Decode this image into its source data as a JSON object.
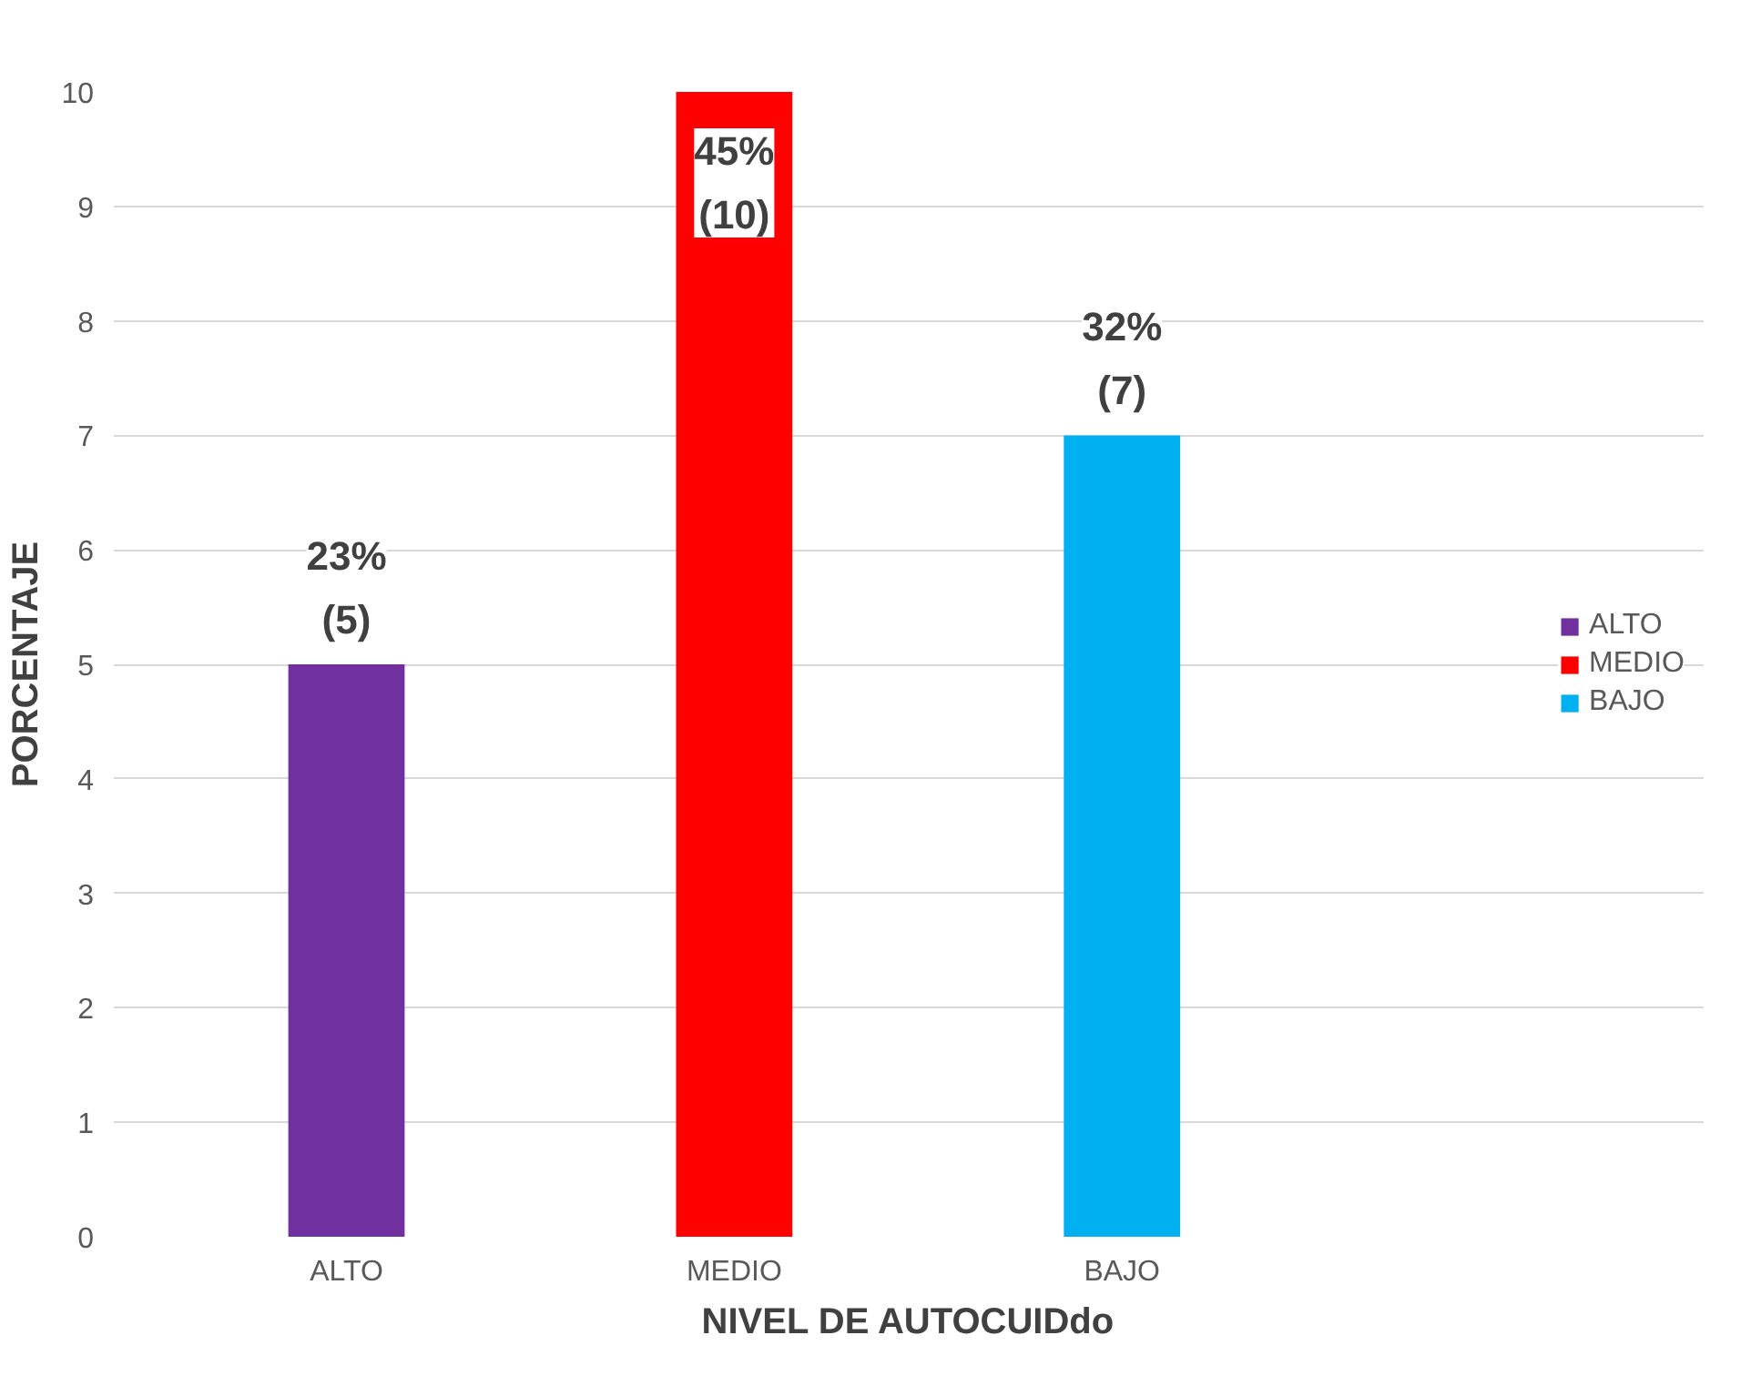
{
  "chart_data": {
    "type": "bar",
    "xlabel": "NIVEL DE AUTOCUIDdo",
    "ylabel": "PORCENTAJE",
    "categories": [
      "ALTO",
      "MEDIO",
      "BAJO"
    ],
    "series": [
      {
        "name": "ALTO",
        "color": "#7030a0",
        "values": [
          5,
          null,
          null
        ],
        "value_labels": [
          "23%\n(5)",
          null,
          null
        ]
      },
      {
        "name": "MEDIO",
        "color": "#ff0000",
        "values": [
          null,
          10,
          null
        ],
        "value_labels": [
          null,
          "45%\n(10)",
          null
        ]
      },
      {
        "name": "BAJO",
        "color": "#00b0f0",
        "values": [
          null,
          null,
          7
        ],
        "value_labels": [
          null,
          null,
          "32%\n(7)"
        ]
      }
    ],
    "ylim": [
      0,
      10
    ],
    "yticks": [
      0,
      1,
      2,
      3,
      4,
      5,
      6,
      7,
      8,
      9,
      10
    ],
    "grid": "y",
    "legend": "right"
  }
}
